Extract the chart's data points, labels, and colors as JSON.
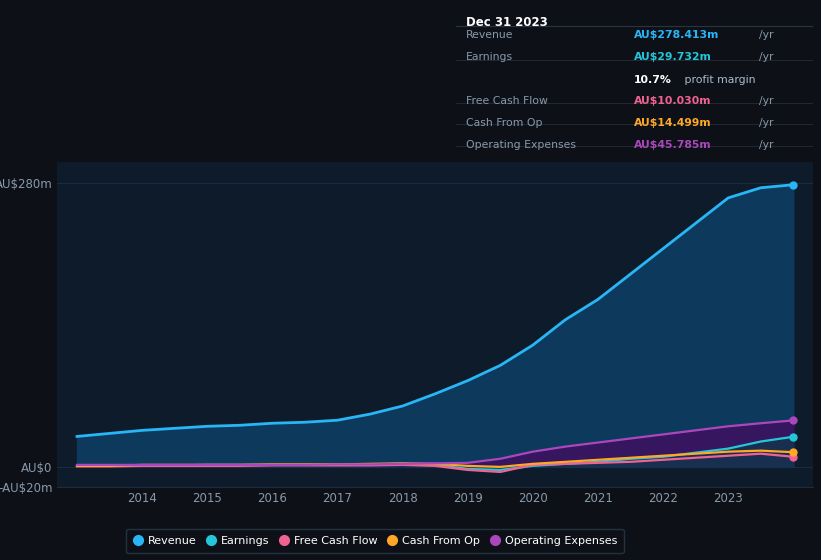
{
  "bg_color": "#0d1117",
  "plot_bg_color": "#0d1b2a",
  "years": [
    2013.0,
    2013.5,
    2014.0,
    2014.5,
    2015.0,
    2015.5,
    2016.0,
    2016.5,
    2017.0,
    2017.5,
    2018.0,
    2018.5,
    2019.0,
    2019.5,
    2020.0,
    2020.5,
    2021.0,
    2021.5,
    2022.0,
    2022.5,
    2023.0,
    2023.5,
    2024.0
  ],
  "revenue": [
    30,
    33,
    36,
    38,
    40,
    41,
    43,
    44,
    46,
    52,
    60,
    72,
    85,
    100,
    120,
    145,
    165,
    190,
    215,
    240,
    265,
    275,
    278
  ],
  "earnings": [
    1.0,
    1.0,
    1.5,
    1.5,
    2.0,
    2.0,
    2.0,
    2.0,
    2.0,
    2.5,
    3.0,
    2.0,
    -2.0,
    -3.0,
    1.0,
    3.0,
    5.0,
    8.0,
    10.0,
    14.0,
    18.0,
    25.0,
    29.7
  ],
  "free_cash_flow": [
    0.5,
    0.5,
    1.0,
    1.0,
    1.0,
    1.0,
    1.5,
    1.5,
    1.5,
    1.5,
    2.0,
    1.0,
    -3.0,
    -5.0,
    2.0,
    3.0,
    4.0,
    5.0,
    7.0,
    9.0,
    11.0,
    13.0,
    10.0
  ],
  "cash_from_op": [
    1.0,
    1.0,
    2.0,
    2.0,
    2.0,
    2.0,
    2.5,
    2.5,
    2.5,
    3.0,
    3.5,
    3.0,
    1.0,
    0.0,
    3.0,
    5.0,
    7.0,
    9.0,
    11.0,
    13.0,
    15.0,
    16.0,
    14.5
  ],
  "operating_exp": [
    2.0,
    2.0,
    2.0,
    2.0,
    2.0,
    2.0,
    2.0,
    2.0,
    2.5,
    2.5,
    3.0,
    3.5,
    4.0,
    8.0,
    15.0,
    20.0,
    24.0,
    28.0,
    32.0,
    36.0,
    40.0,
    43.0,
    45.8
  ],
  "revenue_color": "#29b6f6",
  "earnings_color": "#26c6da",
  "free_cash_flow_color": "#f06292",
  "cash_from_op_color": "#ffa726",
  "operating_exp_color": "#ab47bc",
  "revenue_fill_color": "#0d3a5c",
  "operating_exp_fill_color": "#3d1060",
  "ylim": [
    -20,
    300
  ],
  "ytick_vals": [
    -20,
    0,
    280
  ],
  "ytick_labels": [
    "-AU$20m",
    "AU$0",
    "AU$280m"
  ],
  "xtick_years": [
    2014,
    2015,
    2016,
    2017,
    2018,
    2019,
    2020,
    2021,
    2022,
    2023
  ],
  "grid_color": "#1e2d3d",
  "text_color": "#8899aa",
  "white": "#ffffff",
  "info_box": {
    "title": "Dec 31 2023",
    "rows": [
      {
        "label": "Revenue",
        "value": "AU$278.413m",
        "value_color": "#29b6f6",
        "suffix": "/yr",
        "extra": null
      },
      {
        "label": "Earnings",
        "value": "AU$29.732m",
        "value_color": "#26c6da",
        "suffix": "/yr",
        "extra": "10.7% profit margin"
      },
      {
        "label": "Free Cash Flow",
        "value": "AU$10.030m",
        "value_color": "#f06292",
        "suffix": "/yr",
        "extra": null
      },
      {
        "label": "Cash From Op",
        "value": "AU$14.499m",
        "value_color": "#ffa726",
        "suffix": "/yr",
        "extra": null
      },
      {
        "label": "Operating Expenses",
        "value": "AU$45.785m",
        "value_color": "#ab47bc",
        "suffix": "/yr",
        "extra": null
      }
    ]
  },
  "legend_items": [
    {
      "label": "Revenue",
      "color": "#29b6f6"
    },
    {
      "label": "Earnings",
      "color": "#26c6da"
    },
    {
      "label": "Free Cash Flow",
      "color": "#f06292"
    },
    {
      "label": "Cash From Op",
      "color": "#ffa726"
    },
    {
      "label": "Operating Expenses",
      "color": "#ab47bc"
    }
  ]
}
